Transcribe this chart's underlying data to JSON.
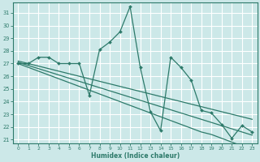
{
  "xlabel": "Humidex (Indice chaleur)",
  "xlim": [
    -0.5,
    23.5
  ],
  "ylim": [
    20.7,
    31.8
  ],
  "yticks": [
    21,
    22,
    23,
    24,
    25,
    26,
    27,
    28,
    29,
    30,
    31
  ],
  "xticks": [
    0,
    1,
    2,
    3,
    4,
    5,
    6,
    7,
    8,
    9,
    10,
    11,
    12,
    13,
    14,
    15,
    16,
    17,
    18,
    19,
    20,
    21,
    22,
    23
  ],
  "bg_color": "#cce8e8",
  "grid_color": "#ffffff",
  "line_color": "#2d7a6a",
  "main_line": [
    27,
    27,
    27.5,
    27.5,
    27,
    27,
    27,
    24.5,
    28.1,
    28.7,
    29.5,
    31.5,
    26.7,
    23.2,
    21.7,
    27.5,
    26.7,
    25.7,
    23.3,
    23.1,
    22.2,
    21.1,
    22.1,
    21.6
  ],
  "reg_line1": [
    27.0,
    26.7,
    26.4,
    26.1,
    25.8,
    25.5,
    25.2,
    24.9,
    24.6,
    24.3,
    24.0,
    23.7,
    23.4,
    23.1,
    22.8,
    22.5,
    22.2,
    21.9,
    21.6,
    21.4,
    21.1,
    20.8,
    20.5,
    20.2
  ],
  "reg_line2": [
    27.1,
    26.85,
    26.6,
    26.35,
    26.1,
    25.85,
    25.6,
    25.35,
    25.1,
    24.85,
    24.6,
    24.35,
    24.1,
    23.85,
    23.6,
    23.35,
    23.1,
    22.85,
    22.6,
    22.35,
    22.1,
    21.85,
    21.6,
    21.35
  ],
  "reg_line3": [
    27.2,
    27.0,
    26.8,
    26.6,
    26.4,
    26.2,
    26.0,
    25.8,
    25.6,
    25.4,
    25.2,
    25.0,
    24.8,
    24.6,
    24.4,
    24.2,
    24.0,
    23.8,
    23.6,
    23.4,
    23.2,
    23.0,
    22.8,
    22.6
  ]
}
